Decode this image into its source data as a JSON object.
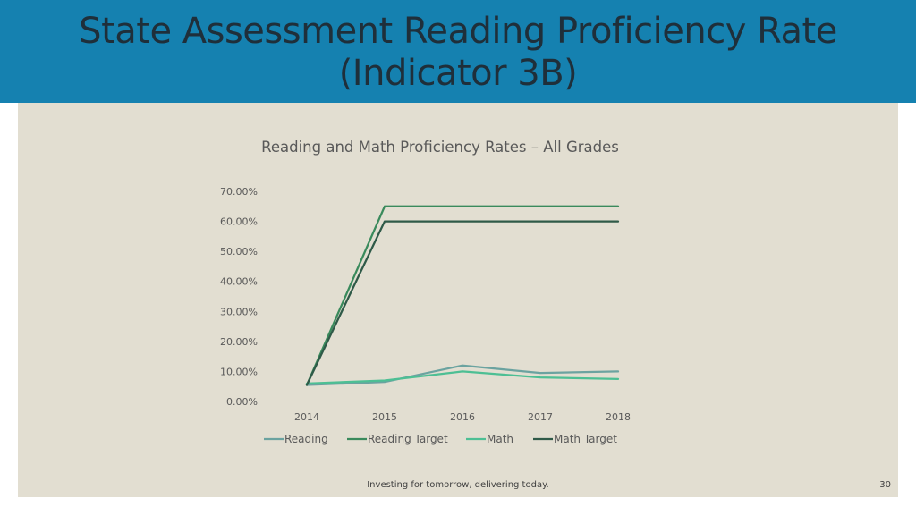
{
  "slide": {
    "title_line1": "State Assessment Reading Proficiency Rate",
    "title_line2": "(Indicator 3B)",
    "footer": "Investing for tomorrow, delivering today.",
    "page_number": "30"
  },
  "colors": {
    "header_bg": "#1581b0",
    "panel_bg": "#e2ded1",
    "reading": "#6ba3a0",
    "reading_target": "#3a8a5c",
    "math": "#4dbf94",
    "math_target": "#2f5a48"
  },
  "chart_data": {
    "type": "line",
    "title": "Reading and Math Proficiency Rates – All Grades",
    "categories": [
      "2014",
      "2015",
      "2016",
      "2017",
      "2018"
    ],
    "y_ticks": [
      "0.00%",
      "10.00%",
      "20.00%",
      "30.00%",
      "40.00%",
      "50.00%",
      "60.00%",
      "70.00%"
    ],
    "ylim": [
      0,
      70
    ],
    "grid": false,
    "legend_position": "bottom",
    "series": [
      {
        "name": "Reading",
        "values": [
          5.5,
          6.5,
          12,
          9.5,
          10
        ],
        "color": "#6ba3a0"
      },
      {
        "name": "Reading Target",
        "values": [
          5.5,
          65,
          65,
          65,
          65
        ],
        "color": "#3a8a5c"
      },
      {
        "name": "Math",
        "values": [
          6,
          7,
          10,
          8,
          7.5
        ],
        "color": "#4dbf94"
      },
      {
        "name": "Math Target",
        "values": [
          5.5,
          60,
          60,
          60,
          60
        ],
        "color": "#2f5a48"
      }
    ]
  }
}
